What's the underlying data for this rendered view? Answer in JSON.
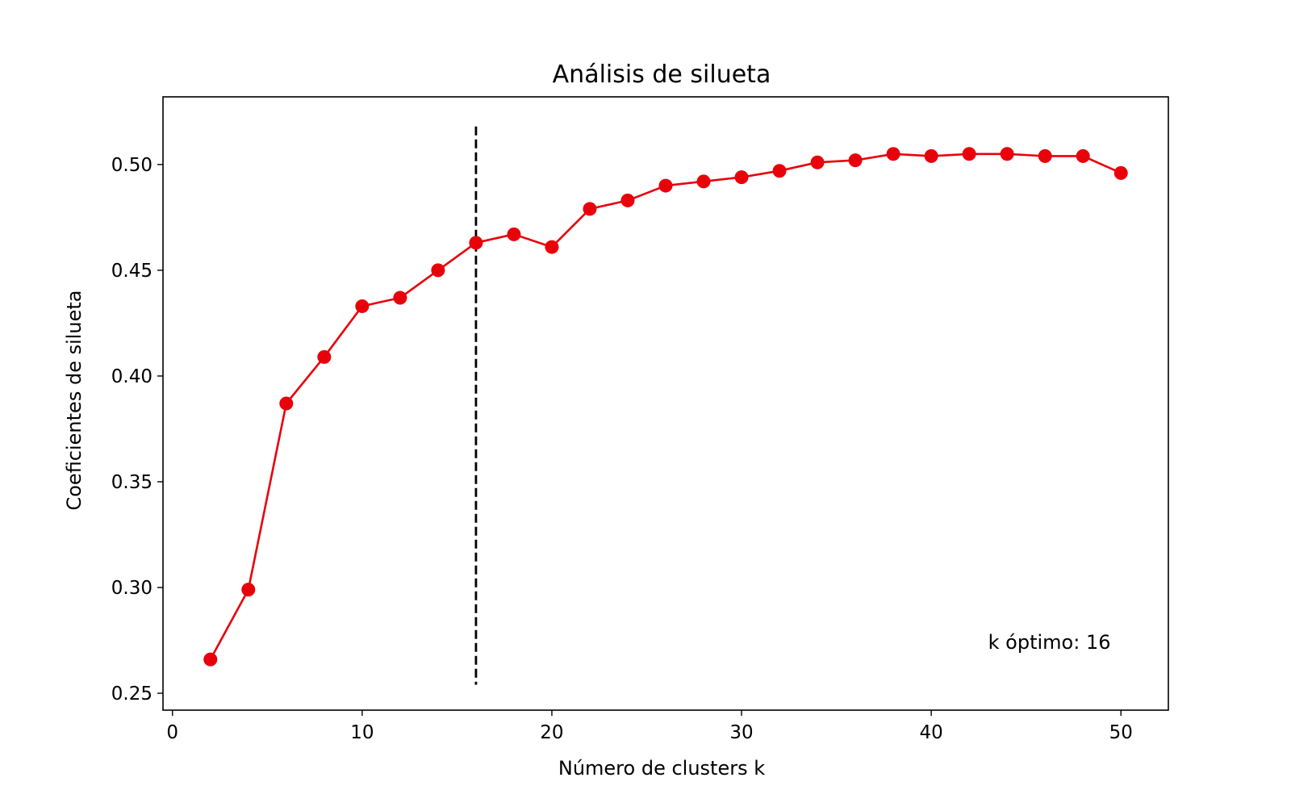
{
  "chart_data": {
    "type": "line",
    "title": "Análisis de silueta",
    "xlabel": "Número de clusters k",
    "ylabel": "Coeficientes de silueta",
    "xlim": [
      -0.5,
      52.5
    ],
    "ylim": [
      0.242,
      0.532
    ],
    "xticks": [
      0,
      10,
      20,
      30,
      40,
      50
    ],
    "yticks": [
      0.25,
      0.3,
      0.35,
      0.4,
      0.45,
      0.5
    ],
    "ytick_labels": [
      "0.25",
      "0.30",
      "0.35",
      "0.40",
      "0.45",
      "0.50"
    ],
    "grid": false,
    "series": [
      {
        "color": "#e8000b",
        "marker": "circle",
        "x": [
          2,
          4,
          6,
          8,
          10,
          12,
          14,
          16,
          18,
          20,
          22,
          24,
          26,
          28,
          30,
          32,
          34,
          36,
          38,
          40,
          42,
          44,
          46,
          48,
          50
        ],
        "y": [
          0.266,
          0.299,
          0.387,
          0.409,
          0.433,
          0.437,
          0.45,
          0.463,
          0.467,
          0.461,
          0.479,
          0.483,
          0.49,
          0.492,
          0.494,
          0.497,
          0.501,
          0.502,
          0.505,
          0.504,
          0.505,
          0.505,
          0.504,
          0.504,
          0.496
        ]
      }
    ],
    "vline": {
      "x": 16,
      "ymin": 0.254,
      "ymax": 0.518,
      "color": "#000000",
      "style": "dashed"
    },
    "annotation": {
      "text": "k óptimo: 16",
      "x": 43,
      "y": 0.271
    }
  }
}
